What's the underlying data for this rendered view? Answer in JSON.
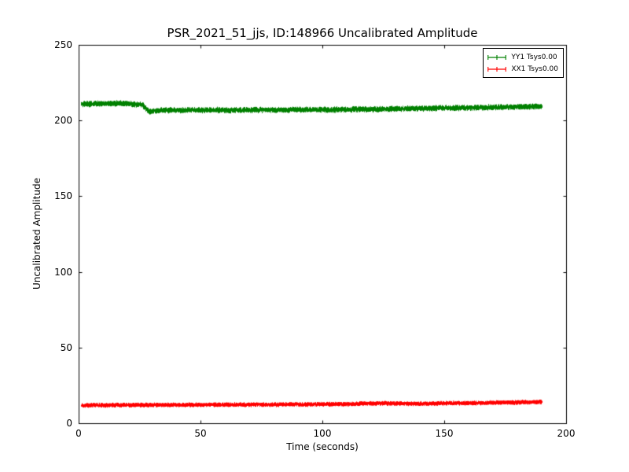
{
  "figure": {
    "background": "#ffffff"
  },
  "chart_data": {
    "type": "line",
    "title": "PSR_2021_51_jjs, ID:148966 Uncalibrated Amplitude",
    "xlabel": "Time (seconds)",
    "ylabel": "Uncalibrated Amplitude",
    "xlim": [
      0,
      200
    ],
    "ylim": [
      0,
      250
    ],
    "xticks": [
      0,
      50,
      100,
      150,
      200
    ],
    "yticks": [
      0,
      50,
      100,
      150,
      200,
      250
    ],
    "xtick_labels": [
      "0",
      "50",
      "100",
      "150",
      "200"
    ],
    "ytick_labels": [
      "0",
      "50",
      "100",
      "150",
      "200",
      "250"
    ],
    "grid": false,
    "legend_position": "upper right",
    "series": [
      {
        "name": "YY1",
        "label": "YY1 Tsys0.00",
        "color": "#008000",
        "x_start": 1,
        "x_end": 190,
        "noise": 1.5,
        "mean_jitter": 0.4,
        "seed": 7,
        "mean_points": [
          [
            1,
            210.8
          ],
          [
            6,
            211.0
          ],
          [
            12,
            211.2
          ],
          [
            18,
            211.3
          ],
          [
            22,
            210.8
          ],
          [
            26,
            210.4
          ],
          [
            27.5,
            208.0
          ],
          [
            29,
            205.8
          ],
          [
            31,
            206.3
          ],
          [
            36,
            206.8
          ],
          [
            45,
            206.9
          ],
          [
            60,
            206.9
          ],
          [
            75,
            207.0
          ],
          [
            90,
            207.1
          ],
          [
            105,
            207.2
          ],
          [
            120,
            207.4
          ],
          [
            135,
            207.8
          ],
          [
            150,
            208.2
          ],
          [
            165,
            208.6
          ],
          [
            178,
            209.0
          ],
          [
            190,
            209.3
          ]
        ]
      },
      {
        "name": "XX1",
        "label": "XX1 Tsys0.00",
        "color": "#ff0000",
        "x_start": 1,
        "x_end": 190,
        "noise": 1.1,
        "mean_jitter": 0.3,
        "seed": 13,
        "mean_points": [
          [
            1,
            11.8
          ],
          [
            15,
            12.0
          ],
          [
            30,
            12.0
          ],
          [
            50,
            12.2
          ],
          [
            70,
            12.3
          ],
          [
            90,
            12.4
          ],
          [
            110,
            12.6
          ],
          [
            118,
            13.1
          ],
          [
            128,
            13.2
          ],
          [
            138,
            12.9
          ],
          [
            150,
            13.1
          ],
          [
            165,
            13.4
          ],
          [
            178,
            13.7
          ],
          [
            190,
            14.0
          ]
        ]
      }
    ]
  }
}
